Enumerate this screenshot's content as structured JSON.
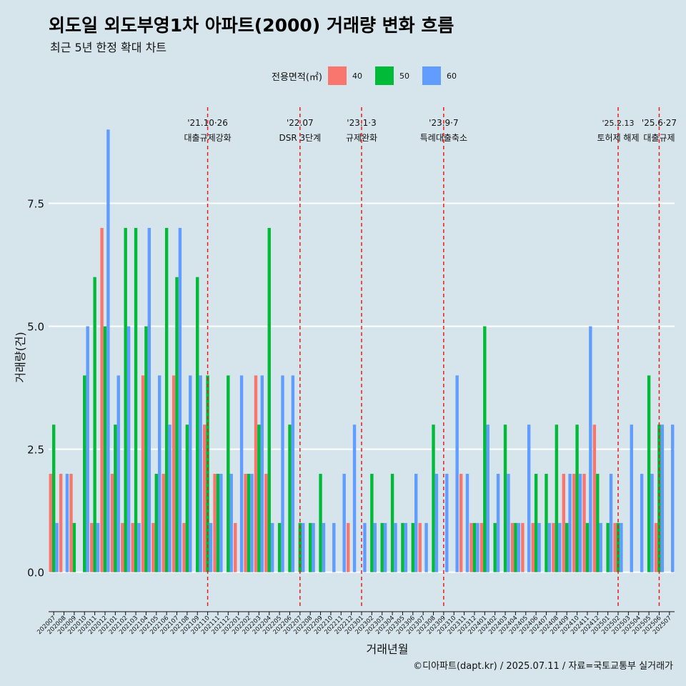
{
  "title": "외도일 외도부영1차 아파트(2000) 거래량 변화 흐름",
  "subtitle": "최근 5년 한정 확대 차트",
  "caption": "©디아파트(dapt.kr) / 2025.07.11 / 자료=국토교통부 실거래가",
  "colors": {
    "40": "#f8766d",
    "50": "#00ba38",
    "60": "#619cff",
    "background": "#d6e4ec",
    "event_line": "#ee1c1c"
  },
  "legend": {
    "title": "전용면적(㎡)",
    "items": [
      {
        "label": "40",
        "color": "#f8766d"
      },
      {
        "label": "50",
        "color": "#00ba38"
      },
      {
        "label": "60",
        "color": "#619cff"
      }
    ]
  },
  "chart_data": {
    "type": "bar",
    "xlabel": "거래년월",
    "ylabel": "거래량(건)",
    "ylim": [
      -0.6,
      9.6
    ],
    "yticks": [
      0.0,
      2.5,
      5.0,
      7.5
    ],
    "ytick_labels": [
      "0.0",
      "2.5",
      "5.0",
      "7.5"
    ],
    "grid": "horizontal",
    "legend_position": "top",
    "categories": [
      "202007",
      "202008",
      "202009",
      "202010",
      "202011",
      "202012",
      "202101",
      "202102",
      "202103",
      "202104",
      "202105",
      "202106",
      "202107",
      "202108",
      "202109",
      "202110",
      "202111",
      "202112",
      "202201",
      "202202",
      "202203",
      "202204",
      "202205",
      "202206",
      "202207",
      "202208",
      "202209",
      "202210",
      "202211",
      "202212",
      "202301",
      "202302",
      "202303",
      "202304",
      "202305",
      "202306",
      "202307",
      "202308",
      "202309",
      "202310",
      "202311",
      "202312",
      "202401",
      "202402",
      "202403",
      "202404",
      "202405",
      "202406",
      "202407",
      "202408",
      "202409",
      "202410",
      "202411",
      "202412",
      "202501",
      "202502",
      "202503",
      "202504",
      "202505",
      "202506",
      "202507"
    ],
    "series": [
      {
        "name": "40",
        "values": [
          2,
          2,
          2,
          0,
          1,
          7,
          2,
          1,
          1,
          4,
          1,
          2,
          4,
          1,
          0,
          3,
          2,
          0,
          1,
          2,
          4,
          2,
          0,
          0,
          0,
          0,
          0,
          0,
          0,
          1,
          0,
          0,
          0,
          0,
          0,
          0,
          1,
          0,
          0,
          0,
          2,
          1,
          1,
          0,
          0,
          1,
          1,
          1,
          0,
          1,
          2,
          2,
          2,
          3,
          0,
          1,
          0,
          0,
          0,
          1,
          0
        ]
      },
      {
        "name": "50",
        "values": [
          3,
          0,
          1,
          4,
          6,
          5,
          3,
          7,
          7,
          5,
          2,
          7,
          6,
          3,
          6,
          4,
          2,
          4,
          0,
          2,
          3,
          7,
          1,
          3,
          1,
          1,
          2,
          0,
          0,
          0,
          0,
          2,
          1,
          2,
          1,
          1,
          0,
          3,
          0,
          0,
          0,
          1,
          5,
          1,
          3,
          1,
          0,
          2,
          2,
          3,
          1,
          3,
          1,
          2,
          1,
          1,
          0,
          0,
          4,
          3,
          0
        ]
      },
      {
        "name": "60",
        "values": [
          1,
          2,
          0,
          5,
          1,
          9,
          4,
          5,
          1,
          7,
          4,
          3,
          7,
          4,
          4,
          1,
          2,
          2,
          4,
          2,
          4,
          1,
          4,
          4,
          1,
          1,
          1,
          1,
          2,
          3,
          1,
          1,
          1,
          1,
          1,
          2,
          1,
          2,
          2,
          4,
          2,
          1,
          3,
          2,
          2,
          1,
          3,
          1,
          1,
          1,
          2,
          2,
          5,
          1,
          2,
          1,
          3,
          2,
          2,
          3,
          3
        ]
      }
    ],
    "annotations": [
      {
        "date_line1": "'21.10·26",
        "date_line2": "대출규제강화",
        "x": "202110",
        "size": "normal"
      },
      {
        "date_line1": "'22.07",
        "date_line2": "DSR 3단계",
        "x": "202207",
        "size": "normal"
      },
      {
        "date_line1": "'23.1·3",
        "date_line2": "규제완화",
        "x": "202301",
        "size": "normal"
      },
      {
        "date_line1": "'23.9·7",
        "date_line2": "특례대출축소",
        "x": "202309",
        "size": "normal"
      },
      {
        "date_line1": "'25.2.13",
        "date_line2": "토허제 해제",
        "x": "202502",
        "size": "small"
      },
      {
        "date_line1": "'25.6·27",
        "date_line2": "대출규제",
        "x": "202506",
        "size": "normal"
      }
    ]
  }
}
